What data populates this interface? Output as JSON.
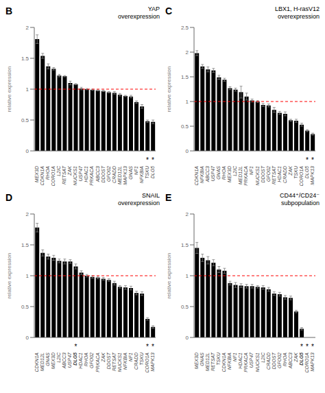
{
  "chart_data": [
    {
      "type": "bar",
      "panel_label": "B",
      "title": "YAP\noverexpression",
      "y_label": "relative expression",
      "categories": [
        "MEX3D",
        "CDKN1A",
        "RHOA",
        "CORO1A",
        "L2IC",
        "RETSAT",
        "ZAK",
        "NUCKS1",
        "USP47",
        "HDAC1",
        "PRKACA",
        "ABCC3",
        "DDOST",
        "GFO02",
        "CRADD",
        "MED12L",
        "MAPK13",
        "GNAS",
        "NF1",
        "NFKBIA",
        "TSKU",
        "DLG5"
      ],
      "values": [
        1.81,
        1.54,
        1.37,
        1.33,
        1.22,
        1.21,
        1.1,
        1.08,
        1.01,
        1.0,
        0.99,
        0.98,
        0.97,
        0.95,
        0.94,
        0.91,
        0.89,
        0.88,
        0.79,
        0.72,
        0.48,
        0.47
      ],
      "errors": [
        0.07,
        0.04,
        0.04,
        0.02,
        0.02,
        0.01,
        0.03,
        0.01,
        0.02,
        0.01,
        0.01,
        0.01,
        0.01,
        0.01,
        0.02,
        0.02,
        0.01,
        0.02,
        0.02,
        0.03,
        0.02,
        0.03
      ],
      "color": "black",
      "ylim": [
        0,
        2.0
      ],
      "yticks": [
        0,
        0.5,
        1.0,
        1.5,
        2.0
      ],
      "reference_lines": [
        {
          "y": 1.0,
          "color": "red",
          "line_style": "dashed"
        }
      ],
      "annotations": [
        {
          "text": "*",
          "category": "TSKU"
        },
        {
          "text": "*",
          "category": "DLG5"
        }
      ],
      "bold_categories": []
    },
    {
      "type": "bar",
      "panel_label": "C",
      "title": "LBX1, H-rasV12\noverexpression",
      "y_label": "relative expression",
      "categories": [
        "CDKN1A",
        "NFKBIA",
        "ABCC3",
        "USP47",
        "GNAS",
        "RHOA",
        "MEX3D",
        "L2IC",
        "MED12L",
        "PRKACA",
        "NF1",
        "NUCKS1",
        "DDOST",
        "GFO02",
        "RETSAT",
        "HDAC1",
        "CRADD",
        "ZAK",
        "TSKU",
        "CORO1A",
        "DLG5",
        "MAPK13"
      ],
      "values": [
        1.98,
        1.71,
        1.65,
        1.63,
        1.49,
        1.44,
        1.27,
        1.24,
        1.19,
        1.1,
        1.02,
        1.0,
        0.93,
        0.92,
        0.83,
        0.77,
        0.75,
        0.62,
        0.61,
        0.53,
        0.41,
        0.34
      ],
      "errors": [
        0.05,
        0.04,
        0.05,
        0.04,
        0.04,
        0.03,
        0.03,
        0.03,
        0.12,
        0.07,
        0.03,
        0.02,
        0.03,
        0.03,
        0.05,
        0.03,
        0.04,
        0.02,
        0.03,
        0.03,
        0.02,
        0.02
      ],
      "color": "black",
      "ylim": [
        0,
        2.5
      ],
      "yticks": [
        0,
        0.5,
        1.0,
        1.5,
        2.0,
        2.5
      ],
      "reference_lines": [
        {
          "y": 1.0,
          "color": "red",
          "line_style": "dashed"
        }
      ],
      "annotations": [
        {
          "text": "*",
          "category": "DLG5"
        },
        {
          "text": "*",
          "category": "MAPK13"
        }
      ],
      "bold_categories": []
    },
    {
      "type": "bar",
      "panel_label": "D",
      "title": "SNAIL\noverexpression",
      "y_label": "relative expression",
      "categories": [
        "CDKN1A",
        "MED12L",
        "GNAS",
        "MEX3D",
        "L2IC",
        "ABCC3",
        "USP47",
        "DLG5",
        "HDAC1",
        "RHOA",
        "GFO02",
        "PRKACA",
        "ZAK",
        "DDOST",
        "RETSAT",
        "NUCKS1",
        "NFKBIA",
        "NF1",
        "CRADD",
        "TSKU",
        "CORO1A",
        "MAPK13"
      ],
      "values": [
        1.78,
        1.37,
        1.31,
        1.29,
        1.24,
        1.23,
        1.23,
        1.15,
        1.05,
        1.0,
        0.98,
        0.97,
        0.95,
        0.93,
        0.88,
        0.82,
        0.81,
        0.8,
        0.72,
        0.71,
        0.3,
        0.17
      ],
      "errors": [
        0.07,
        0.05,
        0.04,
        0.04,
        0.03,
        0.04,
        0.03,
        0.04,
        0.03,
        0.02,
        0.02,
        0.02,
        0.02,
        0.02,
        0.03,
        0.02,
        0.03,
        0.03,
        0.03,
        0.03,
        0.02,
        0.02
      ],
      "color": "black",
      "ylim": [
        0,
        2.0
      ],
      "yticks": [
        0,
        0.5,
        1.0,
        1.5,
        2.0
      ],
      "reference_lines": [
        {
          "y": 1.0,
          "color": "red",
          "line_style": "dashed"
        }
      ],
      "annotations": [
        {
          "text": "*",
          "category": "DLG5"
        },
        {
          "text": "*",
          "category": "CORO1A"
        },
        {
          "text": "*",
          "category": "MAPK13"
        }
      ],
      "bold_categories": [
        "DLG5"
      ]
    },
    {
      "type": "bar",
      "panel_label": "E",
      "title": "CD44⁺/CD24⁻\nsubpopulation",
      "y_label": "relative expression",
      "categories": [
        "MEX3D",
        "GNAS",
        "MED12L",
        "RETSAT",
        "TSKU",
        "CDKN1A",
        "NFKBIA",
        "NF1",
        "HDAC1",
        "PRKACA",
        "USP47",
        "NUCKS1",
        "L2IC",
        "CRADD",
        "DDOST",
        "GFO02",
        "RHOA",
        "ABCC3",
        "ZAK",
        "DLG5",
        "CORO1A",
        "MAPK13"
      ],
      "values": [
        1.45,
        1.29,
        1.25,
        1.21,
        1.1,
        1.08,
        0.88,
        0.85,
        0.84,
        0.83,
        0.83,
        0.82,
        0.81,
        0.78,
        0.71,
        0.7,
        0.65,
        0.64,
        0.42,
        0.14,
        0.0,
        0.0
      ],
      "errors": [
        0.09,
        0.06,
        0.06,
        0.05,
        0.05,
        0.04,
        0.03,
        0.04,
        0.03,
        0.03,
        0.03,
        0.02,
        0.03,
        0.03,
        0.03,
        0.03,
        0.03,
        0.03,
        0.02,
        0.02,
        0.0,
        0.0
      ],
      "color": "black",
      "ylim": [
        0,
        2.0
      ],
      "yticks": [
        0,
        0.5,
        1.0,
        1.5,
        2.0
      ],
      "reference_lines": [
        {
          "y": 1.0,
          "color": "red",
          "line_style": "dashed"
        }
      ],
      "annotations": [
        {
          "text": "*",
          "category": "DLG5"
        },
        {
          "text": "*",
          "category": "CORO1A"
        },
        {
          "text": "*",
          "category": "MAPK13"
        }
      ],
      "bold_categories": [
        "DLG5"
      ]
    }
  ]
}
